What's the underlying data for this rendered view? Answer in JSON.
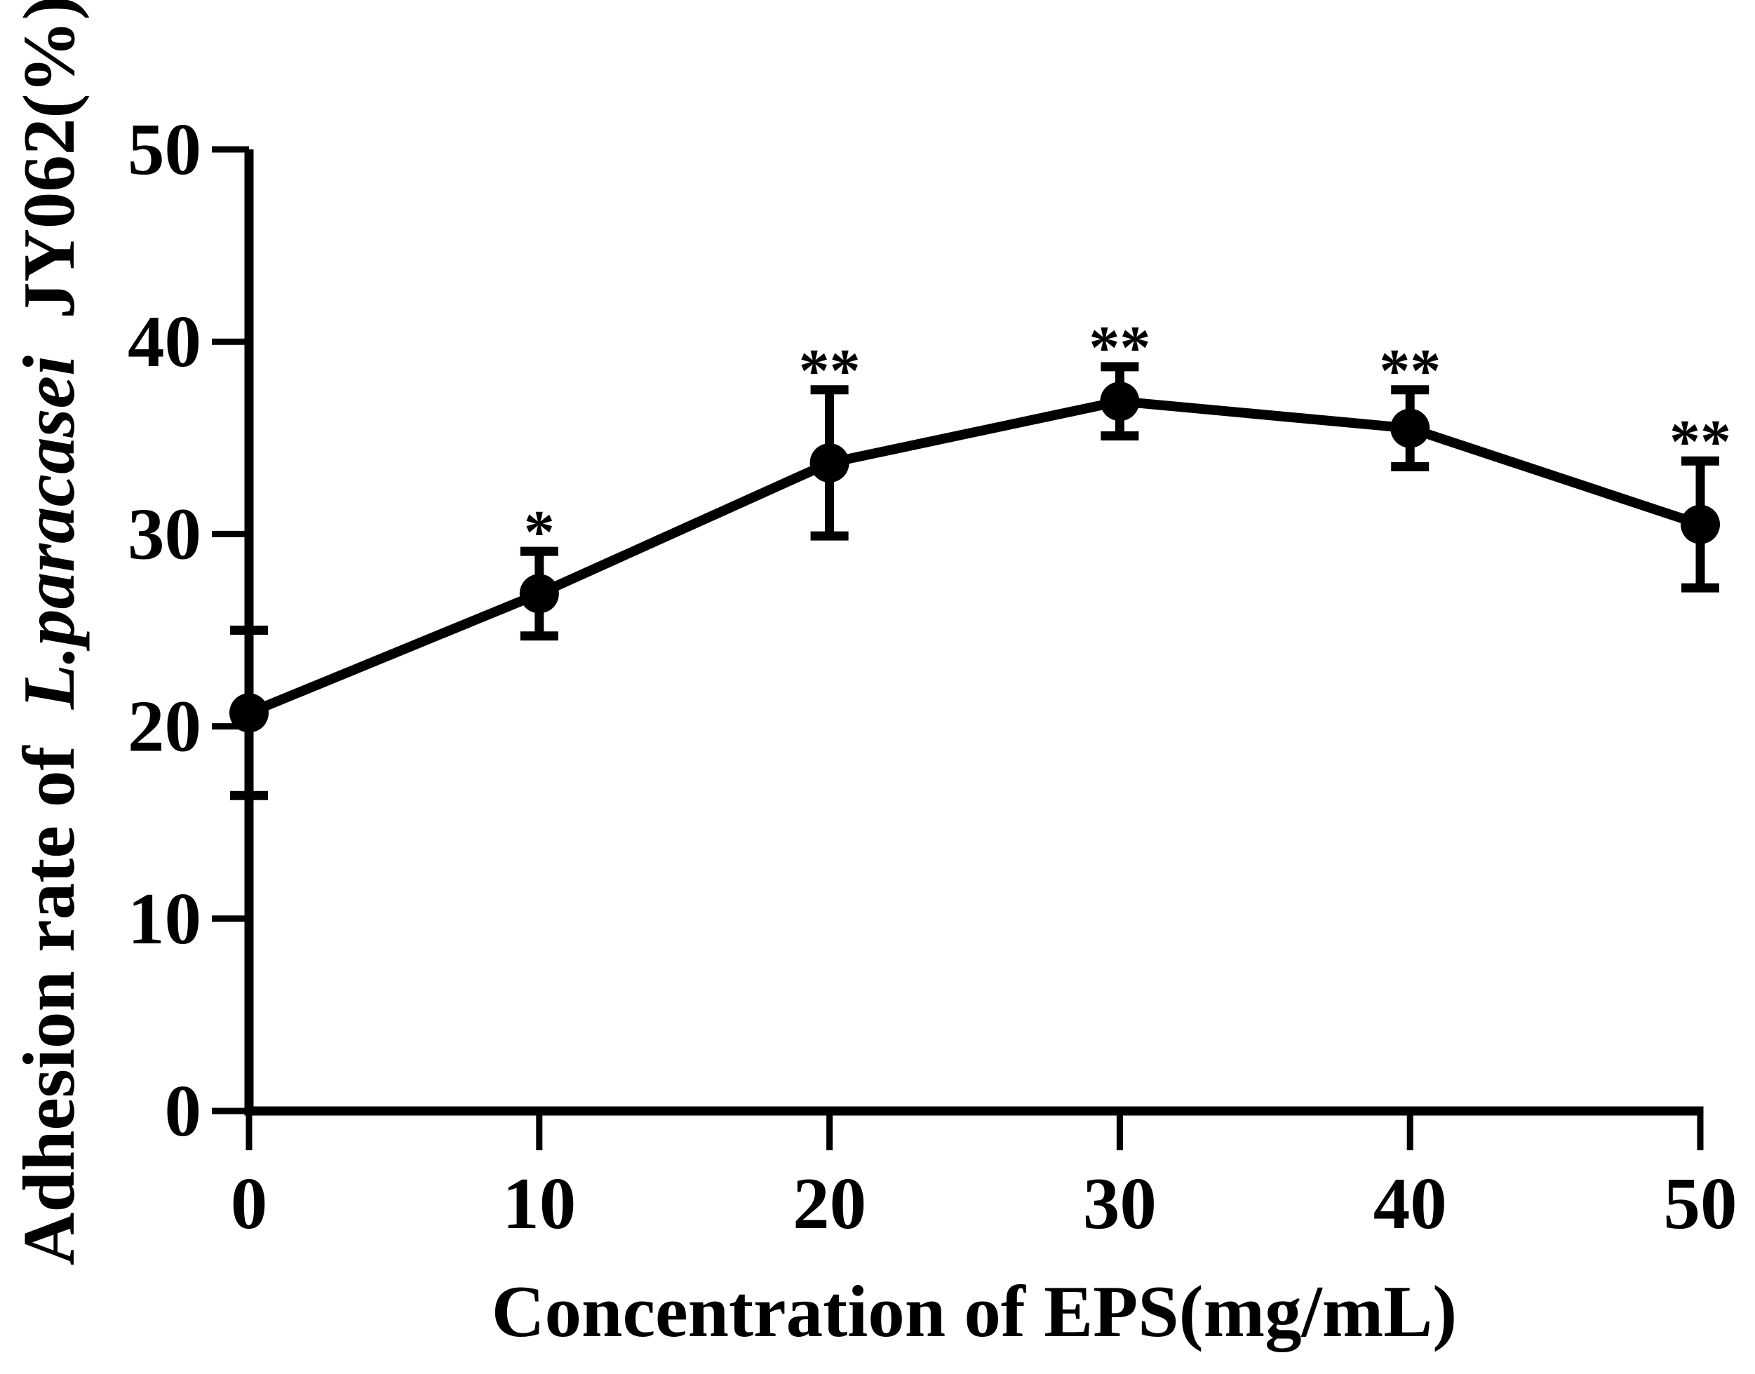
{
  "chart_data": {
    "type": "line",
    "title": "",
    "xlabel": "Concentration of EPS(mg/mL)",
    "ylabel": "Adhesion rate of L.paracasei JY062(%)",
    "ylabel_parts": {
      "prefix": "Adhesion rate of",
      "italic": "L.paracasei",
      "suffix": "JY062(%)"
    },
    "x": [
      0,
      10,
      20,
      30,
      40,
      50
    ],
    "y": [
      20.7,
      26.9,
      33.7,
      36.9,
      35.5,
      30.5
    ],
    "yerr": [
      4.3,
      2.2,
      3.8,
      1.8,
      2.0,
      3.3
    ],
    "significance": [
      "",
      "*",
      "**",
      "**",
      "**",
      "**"
    ],
    "xticks": [
      0,
      10,
      20,
      30,
      40,
      50
    ],
    "yticks": [
      0,
      10,
      20,
      30,
      40,
      50
    ],
    "xlim": [
      0,
      50
    ],
    "ylim": [
      0,
      50
    ],
    "grid": false,
    "legend": false,
    "marker": "filled-circle",
    "line_style": "solid",
    "error_bars": "symmetric-capped",
    "colors": {
      "line": "#000000",
      "marker": "#000000",
      "error": "#000000",
      "text": "#000000",
      "axis": "#000000",
      "background": "#ffffff"
    }
  }
}
